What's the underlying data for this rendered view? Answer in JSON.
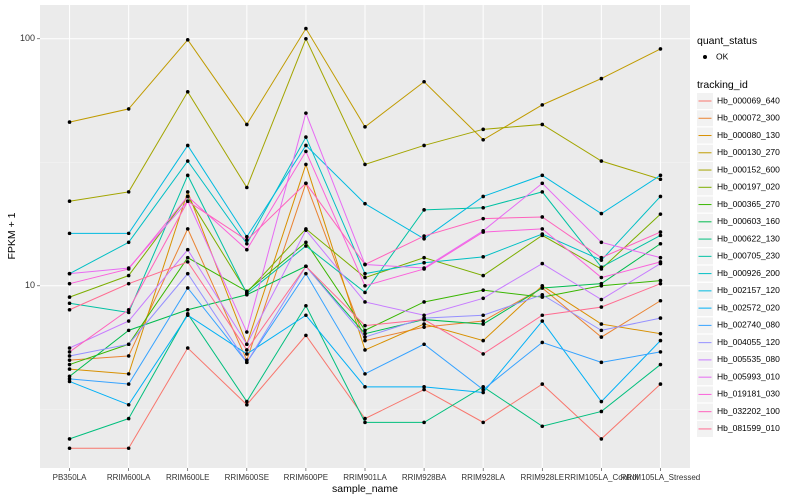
{
  "chart_data": {
    "type": "line",
    "log_y": true,
    "grid": true,
    "x_label": "sample_name",
    "y_label": "FPKM + 1",
    "categories": [
      "PB350LA",
      "RRIM600LA",
      "RRIM600LE",
      "RRIM600SE",
      "RRIM600PE",
      "RRIM901LA",
      "RRIM928BA",
      "RRIM928LA",
      "RRIM928LE",
      "RRIM105LA_Control",
      "RRIM105LA_Stressed"
    ],
    "ylim": [
      1.83,
      137
    ],
    "yticks": [
      10,
      100
    ],
    "shape_legend": {
      "title": "quant_status",
      "labels": [
        "OK"
      ]
    },
    "legend_title": "tracking_id",
    "point_color": "#000000",
    "series": [
      {
        "name": "Hb_000069_640",
        "color": "#F8766D",
        "values": [
          2.2,
          2.2,
          5.6,
          3.3,
          6.3,
          2.9,
          3.8,
          2.8,
          4.0,
          2.4,
          4.0
        ]
      },
      {
        "name": "Hb_000072_300",
        "color": "#EA8331",
        "values": [
          5.0,
          5.2,
          17,
          5.0,
          26,
          6.0,
          6.8,
          7.2,
          9.8,
          6.2,
          8.7
        ]
      },
      {
        "name": "Hb_000080_130",
        "color": "#D89000",
        "values": [
          4.6,
          4.4,
          24,
          5.8,
          31,
          5.5,
          7.0,
          6.0,
          10,
          7.0,
          6.4
        ]
      },
      {
        "name": "Hb_000130_270",
        "color": "#C09B00",
        "values": [
          46,
          52,
          99,
          45,
          110,
          44,
          67,
          39,
          54,
          69,
          91
        ]
      },
      {
        "name": "Hb_000152_600",
        "color": "#A3A500",
        "values": [
          22,
          24,
          61,
          25,
          100,
          31,
          37,
          43,
          45,
          32,
          27
        ]
      },
      {
        "name": "Hb_000197_020",
        "color": "#7CAE00",
        "values": [
          9.0,
          11,
          23,
          9.4,
          17,
          10.8,
          13,
          11,
          16,
          11.7,
          19.5
        ]
      },
      {
        "name": "Hb_000365_270",
        "color": "#39B600",
        "values": [
          4.8,
          5.8,
          13,
          9.5,
          15,
          6.6,
          8.6,
          9.6,
          9.0,
          10,
          10.5
        ]
      },
      {
        "name": "Hb_000603_160",
        "color": "#00BB4E",
        "values": [
          4.3,
          6.6,
          8.0,
          9.2,
          12,
          6.4,
          7.3,
          7.0,
          9.8,
          10.2,
          14.8
        ]
      },
      {
        "name": "Hb_000622_130",
        "color": "#00BF7D",
        "values": [
          2.4,
          2.9,
          7.7,
          3.4,
          8.3,
          2.8,
          2.8,
          3.9,
          2.7,
          3.1,
          4.8
        ]
      },
      {
        "name": "Hb_000705_230",
        "color": "#00C1A3",
        "values": [
          8.5,
          7.8,
          28,
          9.3,
          14.5,
          9.4,
          20.3,
          20.7,
          24,
          11.9,
          16
        ]
      },
      {
        "name": "Hb_000926_200",
        "color": "#00BFC4",
        "values": [
          11.2,
          15,
          32,
          14.8,
          40,
          11.2,
          12.4,
          13.1,
          16.2,
          12.7,
          23
        ]
      },
      {
        "name": "Hb_002157_120",
        "color": "#00BAE0",
        "values": [
          16.3,
          16.3,
          37,
          15.8,
          37,
          21.5,
          15.5,
          23,
          28,
          19.6,
          28
        ]
      },
      {
        "name": "Hb_002572_020",
        "color": "#00B0F6",
        "values": [
          4.1,
          3.3,
          7.6,
          5.3,
          7.6,
          3.9,
          3.9,
          3.7,
          7.2,
          3.4,
          6.0
        ]
      },
      {
        "name": "Hb_002740_080",
        "color": "#35A2FF",
        "values": [
          4.2,
          4.0,
          9.8,
          4.9,
          11.2,
          4.4,
          5.8,
          3.8,
          5.9,
          4.9,
          5.4
        ]
      },
      {
        "name": "Hb_004055_120",
        "color": "#9590FF",
        "values": [
          5.2,
          5.8,
          11.2,
          4.9,
          12,
          6.2,
          7.4,
          7.6,
          9.2,
          6.6,
          7.4
        ]
      },
      {
        "name": "Hb_005535_080",
        "color": "#C77CFF",
        "values": [
          5.6,
          7.2,
          14,
          5.8,
          16.8,
          8.6,
          7.6,
          8.9,
          12.3,
          8.8,
          12.3
        ]
      },
      {
        "name": "Hb_005993_010",
        "color": "#E76BF3",
        "values": [
          11.2,
          11.8,
          22,
          6.5,
          50,
          12.2,
          11.8,
          16.7,
          26,
          15,
          13
        ]
      },
      {
        "name": "Hb_019181_030",
        "color": "#FA62DB",
        "values": [
          10.2,
          11.7,
          23,
          14,
          35,
          10,
          11.7,
          16.5,
          17,
          10.8,
          12.5
        ]
      },
      {
        "name": "Hb_032202_100",
        "color": "#FF62BC",
        "values": [
          5.4,
          8.0,
          22,
          15.3,
          26,
          12.2,
          15.9,
          18.7,
          19,
          13,
          16.5
        ]
      },
      {
        "name": "Hb_081599_010",
        "color": "#FF6C91",
        "values": [
          8.0,
          10.2,
          12.5,
          5.5,
          12,
          6.9,
          7.3,
          5.3,
          7.6,
          8.2,
          10.2
        ]
      }
    ]
  }
}
